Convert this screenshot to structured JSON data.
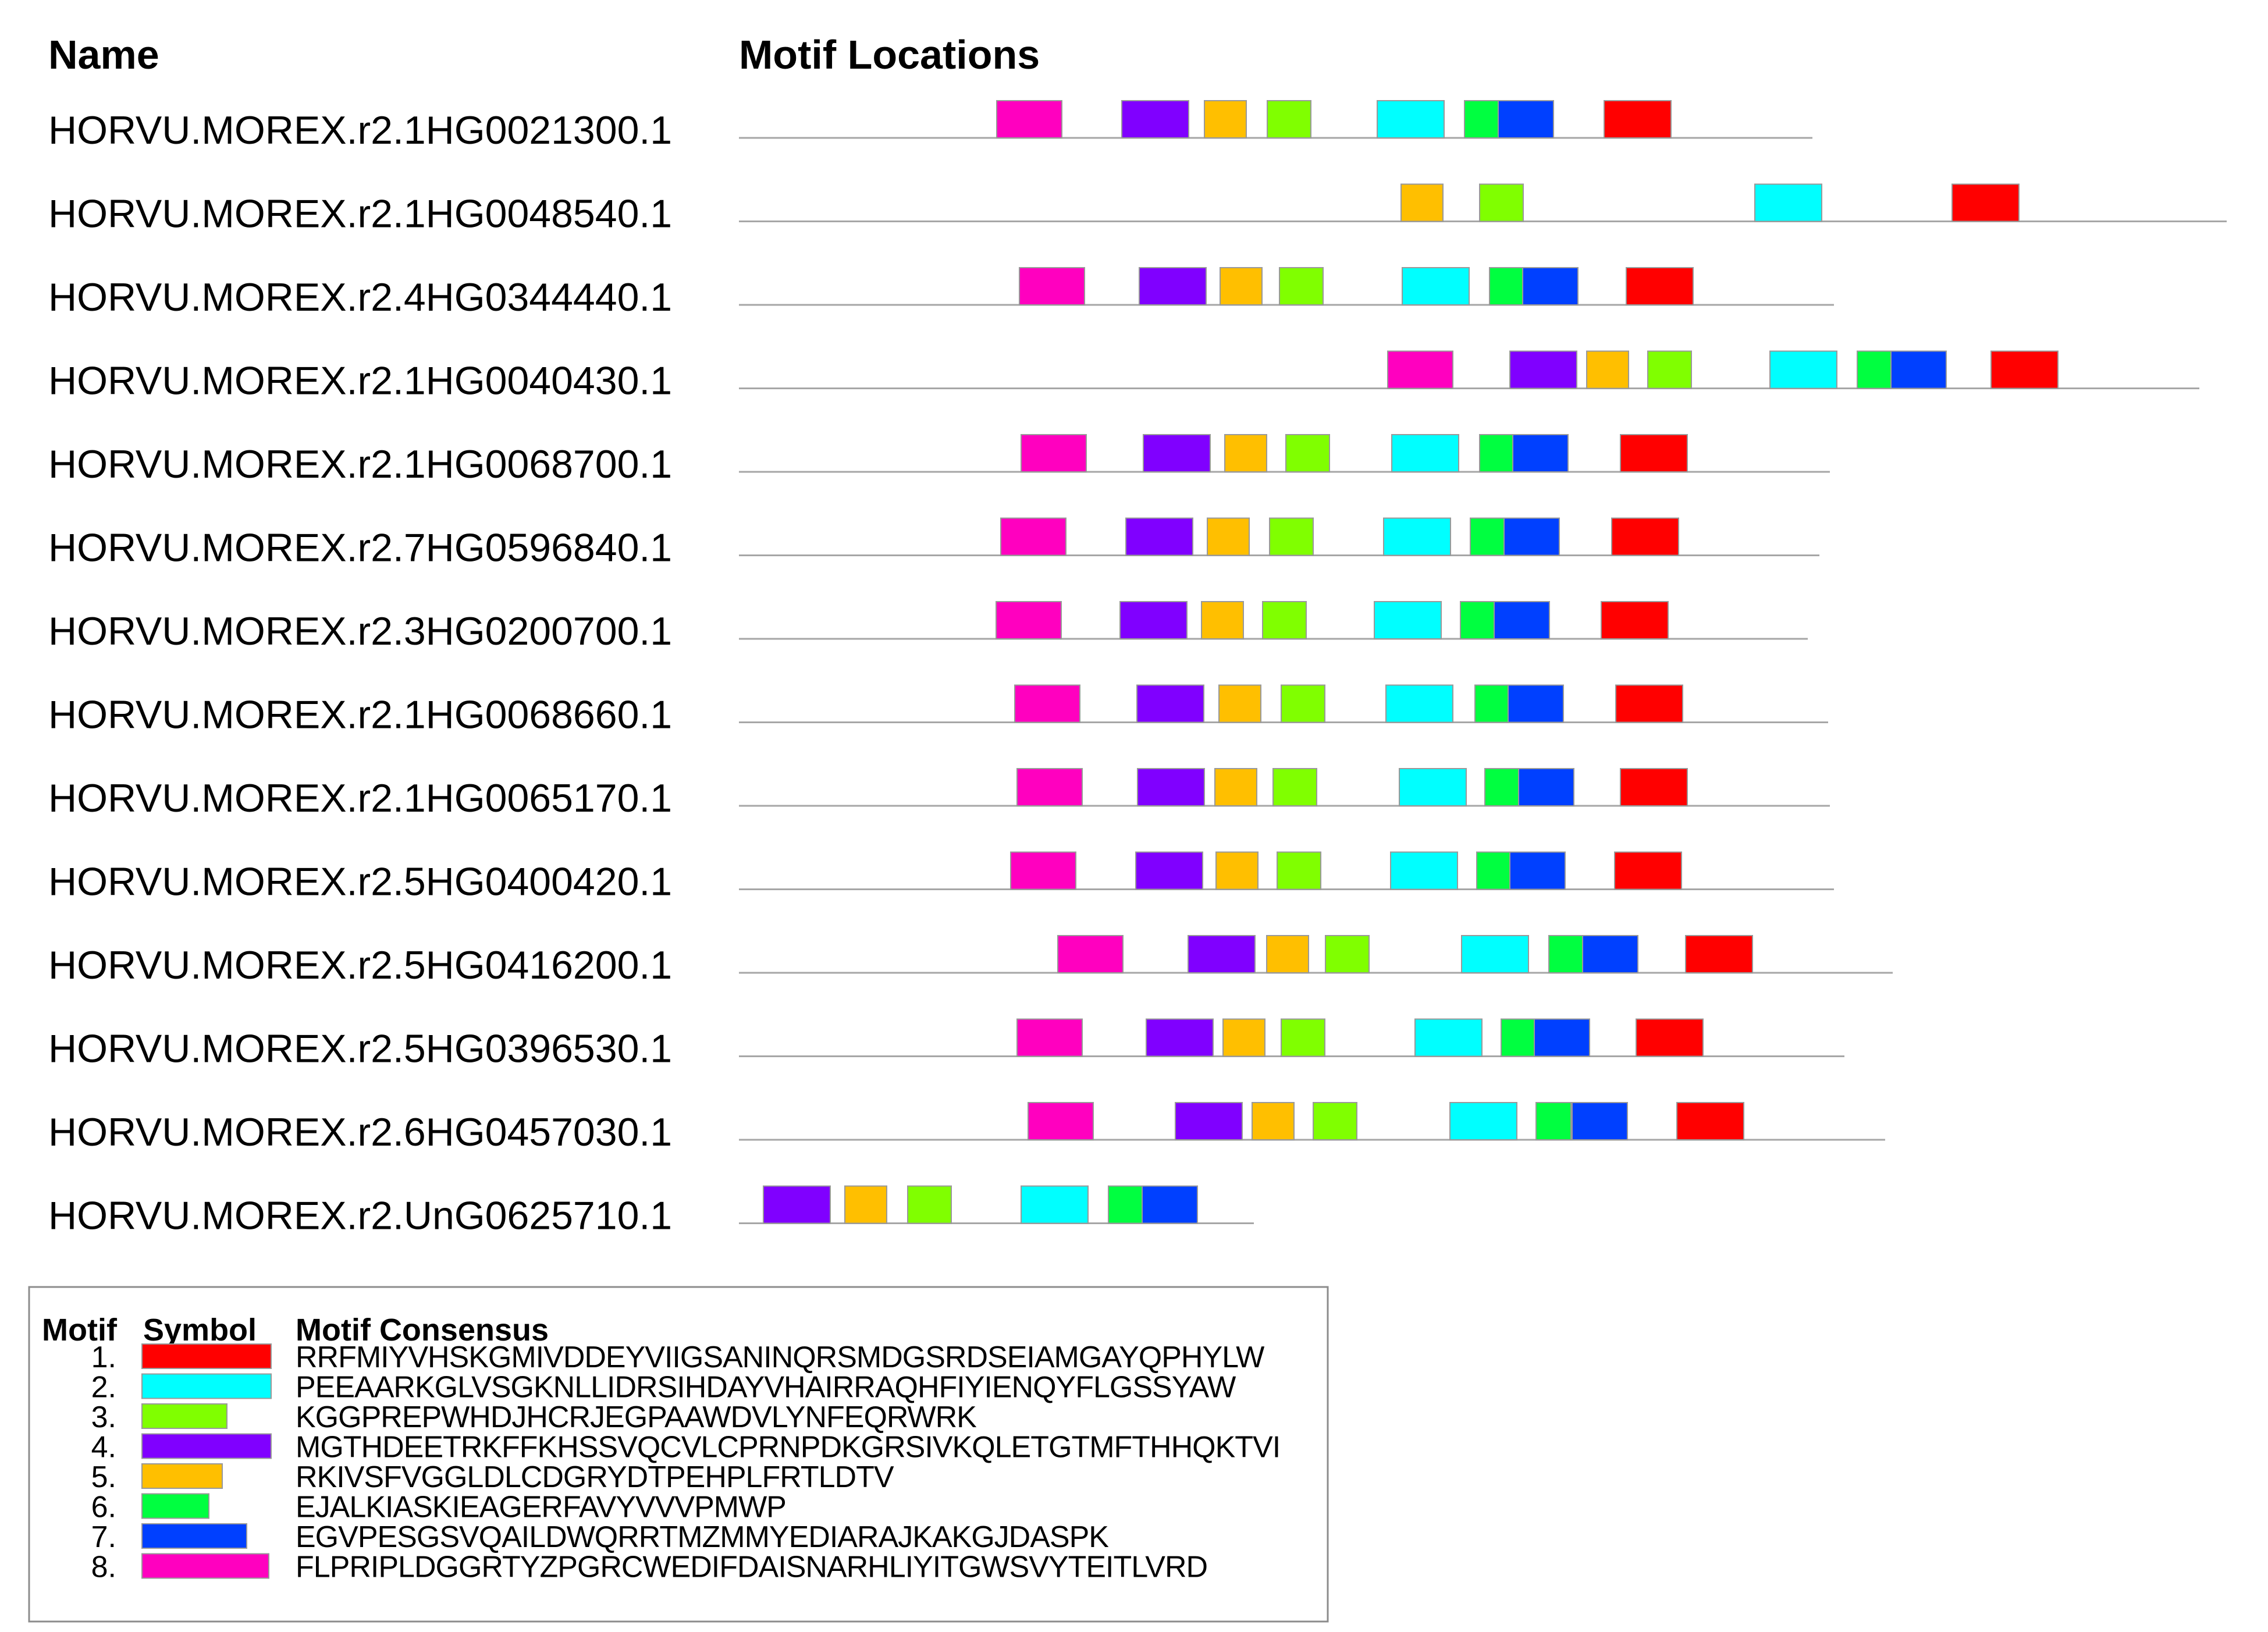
{
  "headers": {
    "name": "Name",
    "motif_locations": "Motif Locations"
  },
  "legend": {
    "headers": {
      "motif": "Motif",
      "symbol": "Symbol",
      "consensus": "Motif Consensus"
    },
    "items": [
      {
        "num": "1.",
        "motif": 1,
        "color": "#ff0000",
        "consensus": "RRFMIYVHSKGMIVDDEYVIIGSANINQRSMDGSRDSEIAMGAYQPHYLW"
      },
      {
        "num": "2.",
        "motif": 2,
        "color": "#00ffff",
        "consensus": "PEEAARKGLVSGKNLLIDRSIHDAYVHAIRRAQHFIYIENQYFLGSSYAW"
      },
      {
        "num": "3.",
        "motif": 3,
        "color": "#80ff00",
        "consensus": "KGGPREPWHDJHCRJEGPAAWDVLYNFEQRWRK"
      },
      {
        "num": "4.",
        "motif": 4,
        "color": "#8000ff",
        "consensus": "MGTHDEETRKFFKHSSVQCVLCPRNPDKGRSIVKQLETGTMFTHHQKTVI"
      },
      {
        "num": "5.",
        "motif": 5,
        "color": "#ffbf00",
        "consensus": "RKIVSFVGGLDLCDGRYDTPEHPLFRTLDTV"
      },
      {
        "num": "6.",
        "motif": 6,
        "color": "#00ff40",
        "consensus": "EJALKIASKIEAGERFAVYVVVPMWP"
      },
      {
        "num": "7.",
        "motif": 7,
        "color": "#0040ff",
        "consensus": "EGVPESGSVQAILDWQRRTMZMMYEDIARAJKAKGJDASPK"
      },
      {
        "num": "8.",
        "motif": 8,
        "color": "#ff00bf",
        "consensus": "FLPRIPLDGGRTYZPGRCWEDIFDAISNARHLIYITGWSVYTEITLVRD"
      }
    ]
  },
  "sequences": [
    {
      "name": "HORVU.MOREX.r2.1HG0021300.1",
      "length": 1845,
      "motifs": [
        {
          "m": 8,
          "s": 443
        },
        {
          "m": 4,
          "s": 658
        },
        {
          "m": 5,
          "s": 800
        },
        {
          "m": 3,
          "s": 908
        },
        {
          "m": 2,
          "s": 1097
        },
        {
          "m": 6,
          "s": 1247
        },
        {
          "m": 7,
          "s": 1305
        },
        {
          "m": 1,
          "s": 1487
        }
      ]
    },
    {
      "name": "HORVU.MOREX.r2.1HG0048540.1",
      "length": 2557,
      "motifs": [
        {
          "m": 5,
          "s": 1138
        },
        {
          "m": 3,
          "s": 1273
        },
        {
          "m": 2,
          "s": 1746
        },
        {
          "m": 1,
          "s": 2085
        }
      ]
    },
    {
      "name": "HORVU.MOREX.r2.4HG0344440.1",
      "length": 1882,
      "motifs": [
        {
          "m": 8,
          "s": 482
        },
        {
          "m": 4,
          "s": 688
        },
        {
          "m": 5,
          "s": 827
        },
        {
          "m": 3,
          "s": 929
        },
        {
          "m": 2,
          "s": 1140
        },
        {
          "m": 6,
          "s": 1290
        },
        {
          "m": 7,
          "s": 1347
        },
        {
          "m": 1,
          "s": 1525
        }
      ]
    },
    {
      "name": "HORVU.MOREX.r2.1HG0040430.1",
      "length": 2510,
      "motifs": [
        {
          "m": 8,
          "s": 1115
        },
        {
          "m": 4,
          "s": 1325
        },
        {
          "m": 5,
          "s": 1457
        },
        {
          "m": 3,
          "s": 1562
        },
        {
          "m": 2,
          "s": 1772
        },
        {
          "m": 6,
          "s": 1922
        },
        {
          "m": 7,
          "s": 1980
        },
        {
          "m": 1,
          "s": 2152
        }
      ]
    },
    {
      "name": "HORVU.MOREX.r2.1HG0068700.1",
      "length": 1875,
      "motifs": [
        {
          "m": 8,
          "s": 485
        },
        {
          "m": 4,
          "s": 695
        },
        {
          "m": 5,
          "s": 835
        },
        {
          "m": 3,
          "s": 940
        },
        {
          "m": 2,
          "s": 1122
        },
        {
          "m": 6,
          "s": 1273
        },
        {
          "m": 7,
          "s": 1330
        },
        {
          "m": 1,
          "s": 1515
        }
      ]
    },
    {
      "name": "HORVU.MOREX.r2.7HG0596840.1",
      "length": 1857,
      "motifs": [
        {
          "m": 8,
          "s": 450
        },
        {
          "m": 4,
          "s": 665
        },
        {
          "m": 5,
          "s": 805
        },
        {
          "m": 3,
          "s": 912
        },
        {
          "m": 2,
          "s": 1108
        },
        {
          "m": 6,
          "s": 1257
        },
        {
          "m": 7,
          "s": 1315
        },
        {
          "m": 1,
          "s": 1500
        }
      ]
    },
    {
      "name": "HORVU.MOREX.r2.3HG0200700.1",
      "length": 1837,
      "motifs": [
        {
          "m": 8,
          "s": 442
        },
        {
          "m": 4,
          "s": 655
        },
        {
          "m": 5,
          "s": 795
        },
        {
          "m": 3,
          "s": 900
        },
        {
          "m": 2,
          "s": 1092
        },
        {
          "m": 6,
          "s": 1240
        },
        {
          "m": 7,
          "s": 1298
        },
        {
          "m": 1,
          "s": 1482
        }
      ]
    },
    {
      "name": "HORVU.MOREX.r2.1HG0068660.1",
      "length": 1872,
      "motifs": [
        {
          "m": 8,
          "s": 474
        },
        {
          "m": 4,
          "s": 684
        },
        {
          "m": 5,
          "s": 825
        },
        {
          "m": 3,
          "s": 932
        },
        {
          "m": 2,
          "s": 1112
        },
        {
          "m": 6,
          "s": 1265
        },
        {
          "m": 7,
          "s": 1322
        },
        {
          "m": 1,
          "s": 1507
        }
      ]
    },
    {
      "name": "HORVU.MOREX.r2.1HG0065170.1",
      "length": 1875,
      "motifs": [
        {
          "m": 8,
          "s": 478
        },
        {
          "m": 4,
          "s": 685
        },
        {
          "m": 5,
          "s": 818
        },
        {
          "m": 3,
          "s": 918
        },
        {
          "m": 2,
          "s": 1135
        },
        {
          "m": 6,
          "s": 1282
        },
        {
          "m": 7,
          "s": 1340
        },
        {
          "m": 1,
          "s": 1515
        }
      ]
    },
    {
      "name": "HORVU.MOREX.r2.5HG0400420.1",
      "length": 1882,
      "motifs": [
        {
          "m": 8,
          "s": 467
        },
        {
          "m": 4,
          "s": 682
        },
        {
          "m": 5,
          "s": 820
        },
        {
          "m": 3,
          "s": 925
        },
        {
          "m": 2,
          "s": 1120
        },
        {
          "m": 6,
          "s": 1268
        },
        {
          "m": 7,
          "s": 1325
        },
        {
          "m": 1,
          "s": 1505
        }
      ]
    },
    {
      "name": "HORVU.MOREX.r2.5HG0416200.1",
      "length": 1983,
      "motifs": [
        {
          "m": 8,
          "s": 548
        },
        {
          "m": 4,
          "s": 772
        },
        {
          "m": 5,
          "s": 907
        },
        {
          "m": 3,
          "s": 1008
        },
        {
          "m": 2,
          "s": 1242
        },
        {
          "m": 6,
          "s": 1392
        },
        {
          "m": 7,
          "s": 1450
        },
        {
          "m": 1,
          "s": 1627
        }
      ]
    },
    {
      "name": "HORVU.MOREX.r2.5HG0396530.1",
      "length": 1900,
      "motifs": [
        {
          "m": 8,
          "s": 478
        },
        {
          "m": 4,
          "s": 700
        },
        {
          "m": 5,
          "s": 832
        },
        {
          "m": 3,
          "s": 932
        },
        {
          "m": 2,
          "s": 1162
        },
        {
          "m": 6,
          "s": 1310
        },
        {
          "m": 7,
          "s": 1367
        },
        {
          "m": 1,
          "s": 1542
        }
      ]
    },
    {
      "name": "HORVU.MOREX.r2.6HG0457030.1",
      "length": 1970,
      "motifs": [
        {
          "m": 8,
          "s": 497
        },
        {
          "m": 4,
          "s": 750
        },
        {
          "m": 5,
          "s": 882
        },
        {
          "m": 3,
          "s": 987
        },
        {
          "m": 2,
          "s": 1222
        },
        {
          "m": 6,
          "s": 1370
        },
        {
          "m": 7,
          "s": 1432
        },
        {
          "m": 1,
          "s": 1612
        }
      ]
    },
    {
      "name": "HORVU.MOREX.r2.UnG0625710.1",
      "length": 885,
      "motifs": [
        {
          "m": 4,
          "s": 42
        },
        {
          "m": 5,
          "s": 182
        },
        {
          "m": 3,
          "s": 290
        },
        {
          "m": 2,
          "s": 485
        },
        {
          "m": 6,
          "s": 635
        },
        {
          "m": 7,
          "s": 693
        }
      ]
    }
  ]
}
